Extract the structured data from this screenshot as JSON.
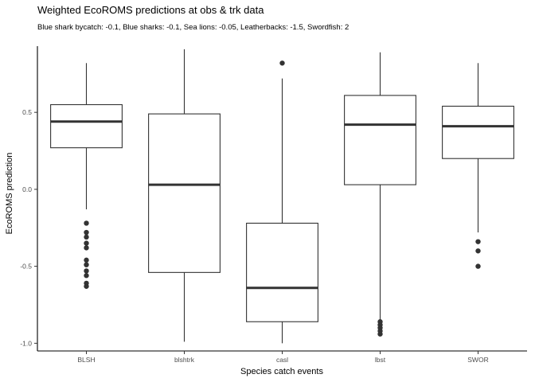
{
  "chart_data": {
    "type": "box",
    "title": "Weighted EcoROMS predictions at obs & trk data",
    "subtitle": "Blue shark bycatch: -0.1, Blue sharks: -0.1, Sea lions: -0.05, Leatherbacks: -1.5, Swordfish: 2",
    "xlabel": "Species catch events",
    "ylabel": "EcoROMS prediction",
    "ylim": [
      -1.05,
      0.93
    ],
    "yticks": [
      -1.0,
      -0.5,
      0.0,
      0.5
    ],
    "ytick_labels": [
      "-1.0",
      "-0.5",
      "0.0",
      "0.5"
    ],
    "grid": false,
    "categories": [
      "BLSH",
      "blshtrk",
      "casl",
      "lbst",
      "SWOR"
    ],
    "boxes": [
      {
        "whisker_low": -0.13,
        "q1": 0.27,
        "median": 0.44,
        "q3": 0.55,
        "whisker_high": 0.82,
        "outliers": [
          -0.22,
          -0.28,
          -0.31,
          -0.35,
          -0.38,
          -0.46,
          -0.49,
          -0.53,
          -0.56,
          -0.61,
          -0.63
        ]
      },
      {
        "whisker_low": -0.99,
        "q1": -0.54,
        "median": 0.03,
        "q3": 0.49,
        "whisker_high": 0.91,
        "outliers": []
      },
      {
        "whisker_low": -1.0,
        "q1": -0.86,
        "median": -0.64,
        "q3": -0.22,
        "whisker_high": 0.72,
        "outliers": [
          0.82
        ]
      },
      {
        "whisker_low": -0.85,
        "q1": 0.03,
        "median": 0.42,
        "q3": 0.61,
        "whisker_high": 0.89,
        "outliers": [
          -0.86,
          -0.88,
          -0.9,
          -0.92,
          -0.94
        ]
      },
      {
        "whisker_low": -0.28,
        "q1": 0.2,
        "median": 0.41,
        "q3": 0.54,
        "whisker_high": 0.82,
        "outliers": [
          -0.34,
          -0.4,
          -0.5
        ]
      }
    ],
    "colors": {
      "box_fill": "#ffffff",
      "line": "#333333",
      "outlier": "#333333",
      "axis": "#000000"
    }
  }
}
